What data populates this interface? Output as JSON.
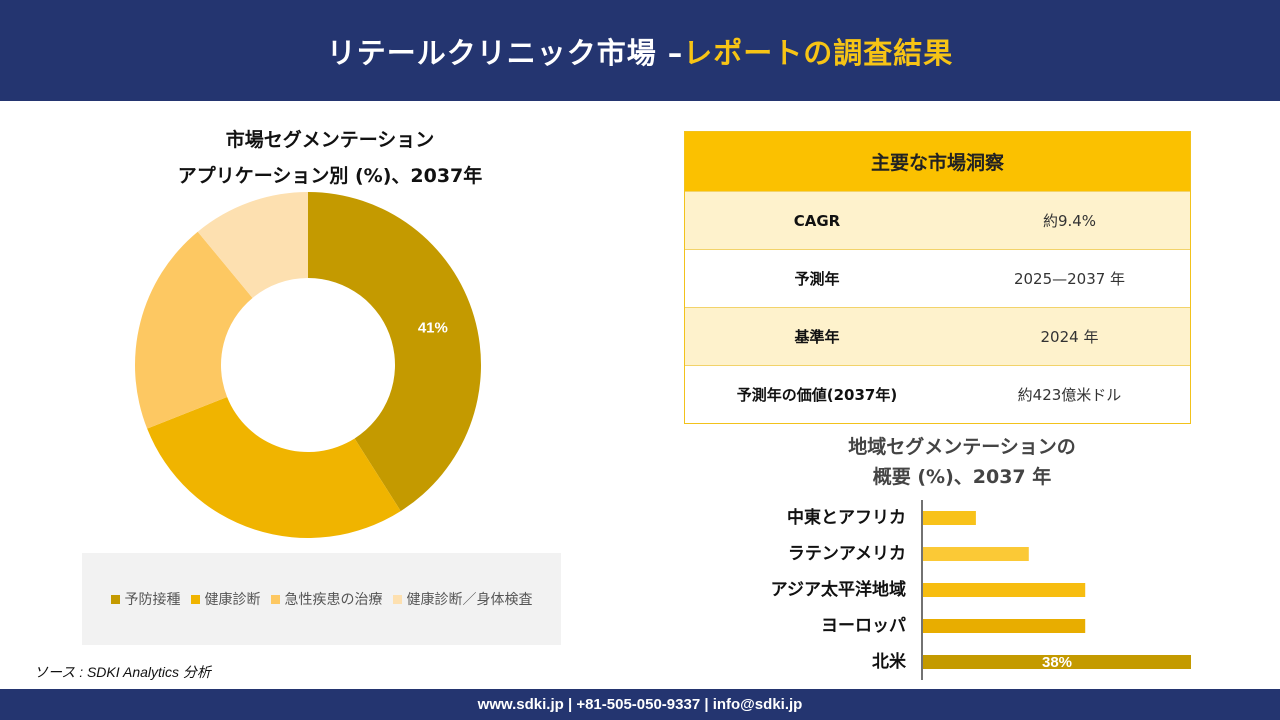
{
  "header": {
    "title_main": "リテールクリニック市場 –",
    "title_accent": "レポートの調査結果"
  },
  "donut": {
    "title_line1": "市場セグメンテーション",
    "title_line2": "アプリケーション別 (%)、2037年"
  },
  "insights": {
    "heading": "主要な市場洞察",
    "rows": [
      {
        "label": "CAGR",
        "value": "約9.4%"
      },
      {
        "label": "予測年",
        "value": "2025—2037 年"
      },
      {
        "label": "基準年",
        "value": "2024 年"
      },
      {
        "label": "予測年の価値(2037年)",
        "value": "約423億米ドル"
      }
    ]
  },
  "region": {
    "title_line1": "地域セグメンテーションの",
    "title_line2": "概要 (%)、2037 年"
  },
  "source": "ソース : SDKI Analytics 分析",
  "footer": "www.sdki.jp | +81-505-050-9337 | info@sdki.jp",
  "chart_data": [
    {
      "type": "pie",
      "variant": "donut",
      "title": "市場セグメンテーション アプリケーション別 (%)、2037年",
      "categories": [
        "予防接種",
        "健康診断",
        "急性疾患の治療",
        "健康診断／身体検査"
      ],
      "values": [
        41,
        28,
        20,
        11
      ],
      "labels": [
        "41%",
        "",
        "",
        ""
      ],
      "colors": [
        "#c49a00",
        "#f0b400",
        "#fdc862",
        "#fde0b0"
      ],
      "legend_position": "bottom"
    },
    {
      "type": "bar",
      "orientation": "horizontal",
      "title": "地域セグメンテーションの 概要 (%)、2037 年",
      "categories": [
        "中東とアフリカ",
        "ラテンアメリカ",
        "アジア太平洋地域",
        "ヨーロッパ",
        "北米"
      ],
      "values": [
        7.5,
        15,
        23,
        23,
        38
      ],
      "labels": [
        "",
        "",
        "",
        "",
        "38%"
      ],
      "colors": [
        "#f8c21a",
        "#fbc936",
        "#f7bd10",
        "#e8ad00",
        "#c49a00"
      ],
      "grid": false
    }
  ]
}
